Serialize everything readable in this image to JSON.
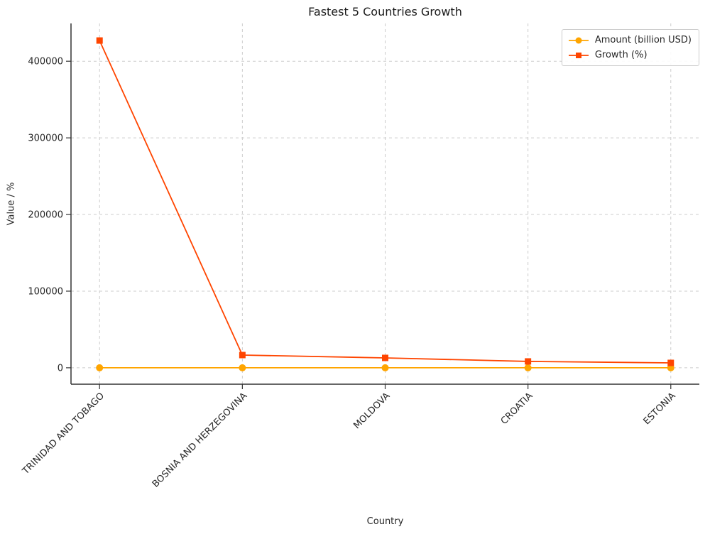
{
  "chart_data": {
    "type": "line",
    "title": "Fastest 5 Countries Growth",
    "xlabel": "Country",
    "ylabel": "Value / %",
    "categories": [
      "TRINIDAD AND TOBAGO",
      "BOSNIA AND HERZEGOVINA",
      "MOLDOVA",
      "CROATIA",
      "ESTONIA"
    ],
    "series": [
      {
        "name": "Amount (billion USD)",
        "color": "#FFA500",
        "marker": "circle",
        "values": [
          0,
          0,
          0,
          0,
          0
        ]
      },
      {
        "name": "Growth (%)",
        "color": "#FF4500",
        "marker": "square",
        "values": [
          427000,
          16600,
          12900,
          8300,
          6400
        ]
      }
    ],
    "yticks": [
      0,
      100000,
      200000,
      300000,
      400000
    ],
    "ylim": [
      -21400,
      449300
    ],
    "grid": true,
    "grid_style": "dashed",
    "legend_position": "upper right",
    "x_tick_rotation": 45
  },
  "colors": {
    "background": "#ffffff",
    "grid": "#cccccc",
    "axis": "#333333",
    "text": "#262626"
  }
}
